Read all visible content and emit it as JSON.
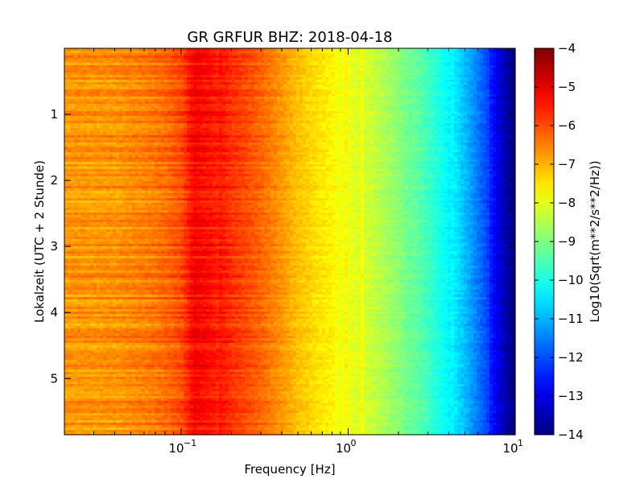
{
  "chart_data": {
    "type": "heatmap",
    "title": "GR GRFUR BHZ: 2018-04-18",
    "xlabel": "Frequency [Hz]",
    "ylabel": "Lokalzeit (UTC + 2 Stunde)",
    "x_scale": "log",
    "xlim": [
      0.02,
      10
    ],
    "ylim": [
      5.85,
      0
    ],
    "y_inverted": true,
    "x_ticks": [
      {
        "value": 0.1,
        "base": "10",
        "exp": "−1"
      },
      {
        "value": 1,
        "base": "10",
        "exp": "0"
      },
      {
        "value": 10,
        "base": "10",
        "exp": "1"
      }
    ],
    "y_ticks": [
      {
        "value": 1,
        "label": "1"
      },
      {
        "value": 2,
        "label": "2"
      },
      {
        "value": 3,
        "label": "3"
      },
      {
        "value": 4,
        "label": "4"
      },
      {
        "value": 5,
        "label": "5"
      }
    ],
    "colorbar": {
      "label": "Log10(Sqrt(m**2/s**2/Hz))",
      "colormap": "jet",
      "range": [
        -14,
        -4
      ],
      "ticks": [
        {
          "value": -4,
          "label": "−4"
        },
        {
          "value": -5,
          "label": "−5"
        },
        {
          "value": -6,
          "label": "−6"
        },
        {
          "value": -7,
          "label": "−7"
        },
        {
          "value": -8,
          "label": "−8"
        },
        {
          "value": -9,
          "label": "−9"
        },
        {
          "value": -10,
          "label": "−10"
        },
        {
          "value": -11,
          "label": "−11"
        },
        {
          "value": -12,
          "label": "−12"
        },
        {
          "value": -13,
          "label": "−13"
        },
        {
          "value": -14,
          "label": "−14"
        }
      ]
    },
    "spectrum_profile": {
      "frequency_hz": [
        0.02,
        0.04,
        0.06,
        0.08,
        0.1,
        0.12,
        0.15,
        0.2,
        0.3,
        0.4,
        0.5,
        0.7,
        1.0,
        1.5,
        2.0,
        3.0,
        4.0,
        5.0,
        6.0,
        7.0,
        8.0,
        9.0,
        10.0
      ],
      "log10_amplitude": [
        -6.6,
        -6.6,
        -6.4,
        -6.2,
        -5.9,
        -5.1,
        -5.3,
        -5.8,
        -6.3,
        -6.8,
        -7.2,
        -7.6,
        -7.9,
        -8.3,
        -8.8,
        -9.6,
        -10.3,
        -11.0,
        -11.7,
        -12.3,
        -13.0,
        -13.6,
        -14.0
      ]
    },
    "features": [
      {
        "frequency_hz": 1.2,
        "kind": "narrow spectral line"
      },
      {
        "frequency_hz": 0.98,
        "kind": "faint spectral line"
      }
    ]
  }
}
